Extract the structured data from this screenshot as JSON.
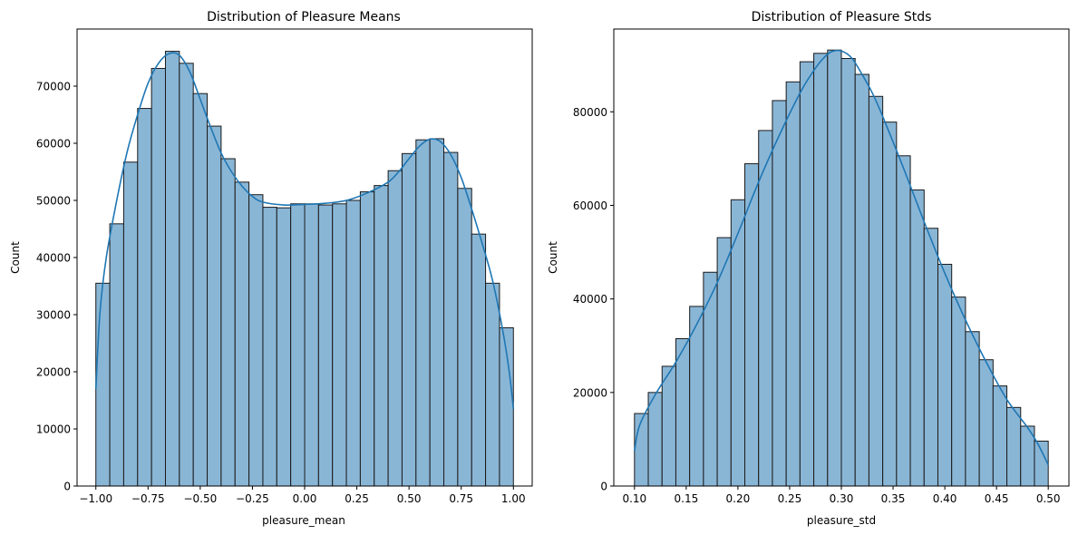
{
  "colors": {
    "bar_fill": "#8ab6d6",
    "bar_edge": "#1a1a1a",
    "kde_line": "#1f77b4",
    "axes": "#000000"
  },
  "chart_data": [
    {
      "type": "histogram",
      "title": "Distribution of Pleasure Means",
      "xlabel": "pleasure_mean",
      "ylabel": "Count",
      "xlim": [
        -1.09,
        1.09
      ],
      "ylim": [
        0,
        80000
      ],
      "bin_start": -1.0,
      "bin_end": 1.0,
      "values": [
        35500,
        45900,
        56700,
        66100,
        73100,
        76100,
        74000,
        68700,
        63000,
        57300,
        53200,
        51000,
        48800,
        48700,
        49400,
        49400,
        49200,
        49400,
        50000,
        51500,
        52600,
        55200,
        58200,
        60600,
        60800,
        58400,
        52100,
        44100,
        35500,
        27700
      ],
      "kde": [
        [
          -1.0,
          17000
        ],
        [
          -0.98,
          30500
        ],
        [
          -0.95,
          40000
        ],
        [
          -0.9,
          50000
        ],
        [
          -0.85,
          58500
        ],
        [
          -0.8,
          65000
        ],
        [
          -0.75,
          70500
        ],
        [
          -0.7,
          74000
        ],
        [
          -0.65,
          75700
        ],
        [
          -0.6,
          75400
        ],
        [
          -0.55,
          72500
        ],
        [
          -0.5,
          67700
        ],
        [
          -0.45,
          62800
        ],
        [
          -0.4,
          58300
        ],
        [
          -0.35,
          55000
        ],
        [
          -0.3,
          52500
        ],
        [
          -0.25,
          50700
        ],
        [
          -0.2,
          49700
        ],
        [
          -0.1,
          49200
        ],
        [
          0.0,
          49300
        ],
        [
          0.1,
          49500
        ],
        [
          0.2,
          50000
        ],
        [
          0.3,
          51300
        ],
        [
          0.4,
          53200
        ],
        [
          0.45,
          55000
        ],
        [
          0.5,
          57300
        ],
        [
          0.55,
          59500
        ],
        [
          0.6,
          60700
        ],
        [
          0.65,
          60300
        ],
        [
          0.7,
          58000
        ],
        [
          0.75,
          54000
        ],
        [
          0.8,
          48500
        ],
        [
          0.85,
          42500
        ],
        [
          0.9,
          36000
        ],
        [
          0.95,
          27000
        ],
        [
          0.98,
          20000
        ],
        [
          1.0,
          13500
        ]
      ],
      "xticks": [
        -1.0,
        -0.75,
        -0.5,
        -0.25,
        0.0,
        0.25,
        0.5,
        0.75,
        1.0
      ],
      "xtick_labels": [
        "−1.00",
        "−0.75",
        "−0.50",
        "−0.25",
        "0.00",
        "0.25",
        "0.50",
        "0.75",
        "1.00"
      ],
      "yticks": [
        0,
        10000,
        20000,
        30000,
        40000,
        50000,
        60000,
        70000
      ],
      "ytick_labels": [
        "0",
        "10000",
        "20000",
        "30000",
        "40000",
        "50000",
        "60000",
        "70000"
      ],
      "grid": false
    },
    {
      "type": "histogram",
      "title": "Distribution of Pleasure Stds",
      "xlabel": "pleasure_std",
      "ylabel": "Count",
      "xlim": [
        0.08,
        0.52
      ],
      "ylim": [
        0,
        97700
      ],
      "bin_start": 0.1,
      "bin_end": 0.5,
      "values": [
        15500,
        20000,
        25600,
        31500,
        38400,
        45700,
        53100,
        61200,
        68900,
        76000,
        82400,
        86400,
        90700,
        92500,
        93200,
        91400,
        88000,
        83300,
        77800,
        70600,
        63300,
        55100,
        47400,
        40400,
        33000,
        27000,
        21400,
        16800,
        12800,
        9600
      ],
      "kde": [
        [
          0.1,
          7500
        ],
        [
          0.105,
          13000
        ],
        [
          0.12,
          19500
        ],
        [
          0.14,
          26500
        ],
        [
          0.16,
          34500
        ],
        [
          0.18,
          43500
        ],
        [
          0.2,
          54000
        ],
        [
          0.22,
          65000
        ],
        [
          0.24,
          75000
        ],
        [
          0.26,
          84000
        ],
        [
          0.27,
          87700
        ],
        [
          0.28,
          90800
        ],
        [
          0.29,
          92800
        ],
        [
          0.3,
          93000
        ],
        [
          0.31,
          91500
        ],
        [
          0.32,
          88000
        ],
        [
          0.33,
          84000
        ],
        [
          0.34,
          79000
        ],
        [
          0.36,
          68000
        ],
        [
          0.38,
          56500
        ],
        [
          0.4,
          45500
        ],
        [
          0.42,
          35500
        ],
        [
          0.44,
          26500
        ],
        [
          0.46,
          18500
        ],
        [
          0.48,
          12500
        ],
        [
          0.49,
          9000
        ],
        [
          0.5,
          4500
        ]
      ],
      "xticks": [
        0.1,
        0.15,
        0.2,
        0.25,
        0.3,
        0.35,
        0.4,
        0.45,
        0.5
      ],
      "xtick_labels": [
        "0.10",
        "0.15",
        "0.20",
        "0.25",
        "0.30",
        "0.35",
        "0.40",
        "0.45",
        "0.50"
      ],
      "yticks": [
        0,
        20000,
        40000,
        60000,
        80000
      ],
      "ytick_labels": [
        "0",
        "20000",
        "40000",
        "60000",
        "80000"
      ],
      "grid": false
    }
  ]
}
